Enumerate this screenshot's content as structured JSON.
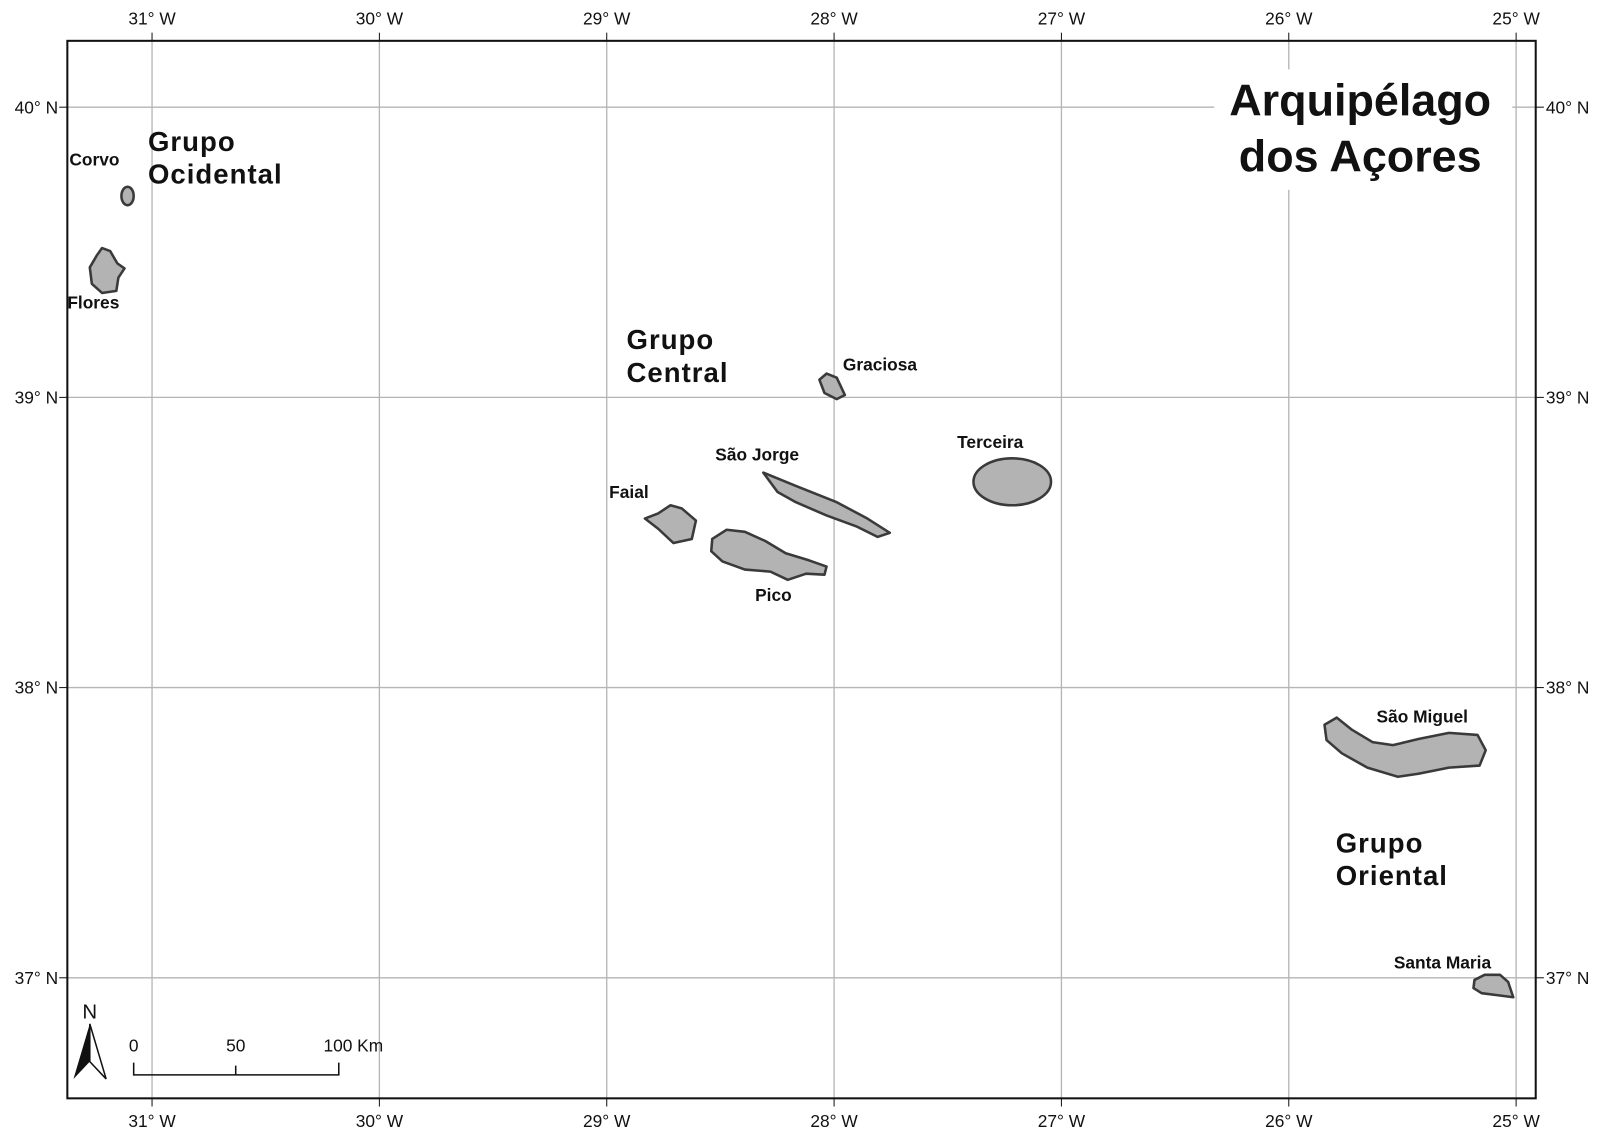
{
  "title": [
    "Arquipélago",
    "dos Açores"
  ],
  "longitude_labels": [
    "31° W",
    "30° W",
    "29° W",
    "28° W",
    "27° W",
    "26° W",
    "25° W"
  ],
  "latitude_labels": [
    "40° N",
    "39° N",
    "38° N",
    "37° N"
  ],
  "groups": [
    "Grupo Ocidental",
    "Grupo Central",
    "Grupo Oriental"
  ],
  "group_lines": [
    [
      "Grupo",
      "Ocidental"
    ],
    [
      "Grupo",
      "Central"
    ],
    [
      "Grupo",
      "Oriental"
    ]
  ],
  "islands": [
    "Corvo",
    "Flores",
    "Graciosa",
    "São Jorge",
    "Faial",
    "Pico",
    "Terceira",
    "São Miguel",
    "Santa Maria"
  ],
  "north_arrow": "N",
  "scale_bar": [
    "0",
    "50",
    "100 Km"
  ]
}
